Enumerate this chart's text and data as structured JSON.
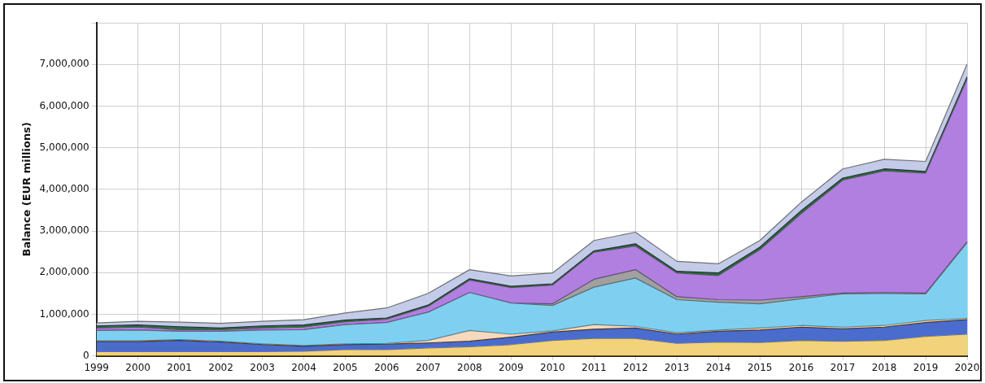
{
  "chart_data": {
    "type": "area",
    "stacked": true,
    "ylabel": "Balance (EUR millions)",
    "categories": [
      "1999",
      "2000",
      "2001",
      "2002",
      "2003",
      "2004",
      "2005",
      "2006",
      "2007",
      "2008",
      "2009",
      "2010",
      "2011",
      "2012",
      "2013",
      "2014",
      "2015",
      "2016",
      "2017",
      "2018",
      "2019",
      "2020"
    ],
    "series": [
      {
        "color": "#f2d27a",
        "values": [
          100000,
          100000,
          100000,
          100000,
          100000,
          110000,
          150000,
          150000,
          190000,
          220000,
          270000,
          370000,
          420000,
          420000,
          300000,
          330000,
          320000,
          370000,
          350000,
          370000,
          470000,
          520000
        ]
      },
      {
        "color": "#4a6ccc",
        "values": [
          240000,
          240000,
          270000,
          230000,
          170000,
          120000,
          120000,
          130000,
          120000,
          130000,
          180000,
          200000,
          220000,
          250000,
          220000,
          260000,
          300000,
          320000,
          300000,
          320000,
          330000,
          350000
        ]
      },
      {
        "color": "#f7d9bd",
        "values": [
          20000,
          20000,
          20000,
          20000,
          20000,
          20000,
          20000,
          20000,
          60000,
          260000,
          70000,
          30000,
          110000,
          40000,
          30000,
          30000,
          50000,
          40000,
          40000,
          40000,
          50000,
          30000
        ]
      },
      {
        "color": "#7fd0f0",
        "values": [
          250000,
          260000,
          200000,
          240000,
          330000,
          380000,
          460000,
          500000,
          680000,
          910000,
          750000,
          610000,
          900000,
          1160000,
          800000,
          670000,
          580000,
          640000,
          800000,
          770000,
          640000,
          1820000
        ]
      },
      {
        "color": "#a0a0a0",
        "values": [
          0,
          0,
          0,
          0,
          0,
          0,
          0,
          0,
          0,
          0,
          0,
          40000,
          190000,
          200000,
          70000,
          60000,
          90000,
          50000,
          20000,
          20000,
          20000,
          20000
        ]
      },
      {
        "color": "#b07fe0",
        "values": [
          60000,
          70000,
          40000,
          40000,
          50000,
          60000,
          70000,
          80000,
          140000,
          300000,
          370000,
          450000,
          650000,
          570000,
          570000,
          580000,
          1210000,
          2000000,
          2710000,
          2920000,
          2880000,
          3910000
        ]
      },
      {
        "color": "#2d6a3e",
        "values": [
          50000,
          50000,
          70000,
          40000,
          50000,
          50000,
          40000,
          30000,
          30000,
          30000,
          30000,
          30000,
          30000,
          50000,
          40000,
          60000,
          60000,
          70000,
          50000,
          50000,
          40000,
          50000
        ]
      },
      {
        "color": "#c3cbe8",
        "values": [
          70000,
          90000,
          110000,
          110000,
          110000,
          130000,
          170000,
          240000,
          280000,
          220000,
          250000,
          260000,
          250000,
          280000,
          240000,
          220000,
          160000,
          200000,
          220000,
          230000,
          240000,
          310000
        ]
      }
    ],
    "ylim": [
      0,
      8000000
    ],
    "yticks": [
      {
        "value": 0,
        "label": "0"
      },
      {
        "value": 1000000,
        "label": "1,000,000"
      },
      {
        "value": 2000000,
        "label": "2,000,000"
      },
      {
        "value": 3000000,
        "label": "3,000,000"
      },
      {
        "value": 4000000,
        "label": "4,000,000"
      },
      {
        "value": 5000000,
        "label": "5,000,000"
      },
      {
        "value": 6000000,
        "label": "6,000,000"
      },
      {
        "value": 7000000,
        "label": "7,000,000"
      },
      {
        "value": 8000000,
        "label": null
      }
    ],
    "grid": true,
    "legend": false
  }
}
